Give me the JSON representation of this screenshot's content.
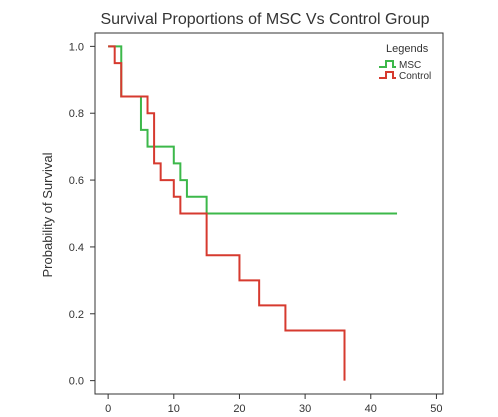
{
  "chart_data": {
    "type": "line",
    "step": true,
    "title": "Survival Proportions of MSC Vs Control Group",
    "xlabel": "",
    "ylabel": "Probability of Survival",
    "xlim": [
      -2,
      51
    ],
    "ylim": [
      -0.04,
      1.04
    ],
    "x_ticks": [
      0,
      10,
      20,
      30,
      40,
      50
    ],
    "y_ticks": [
      0.0,
      0.2,
      0.4,
      0.6,
      0.8,
      1.0
    ],
    "y_tick_labels": [
      "0.0",
      "0.2",
      "0.4",
      "0.6",
      "0.8",
      "1.0"
    ],
    "grid": false,
    "legend": {
      "title": "Legends",
      "position": "top-right"
    },
    "series": [
      {
        "name": "MSC",
        "color": "#3cb84a",
        "x": [
          0,
          2,
          5,
          6,
          10,
          11,
          12,
          15,
          44
        ],
        "y": [
          1.0,
          0.85,
          0.75,
          0.7,
          0.65,
          0.6,
          0.55,
          0.5,
          0.5
        ]
      },
      {
        "name": "Control",
        "color": "#d63a2f",
        "x": [
          0,
          1,
          2,
          6,
          7,
          8,
          10,
          11,
          15,
          20,
          23,
          27,
          36
        ],
        "y": [
          1.0,
          0.95,
          0.85,
          0.8,
          0.65,
          0.6,
          0.55,
          0.5,
          0.375,
          0.3,
          0.225,
          0.15,
          0.0
        ]
      }
    ]
  }
}
